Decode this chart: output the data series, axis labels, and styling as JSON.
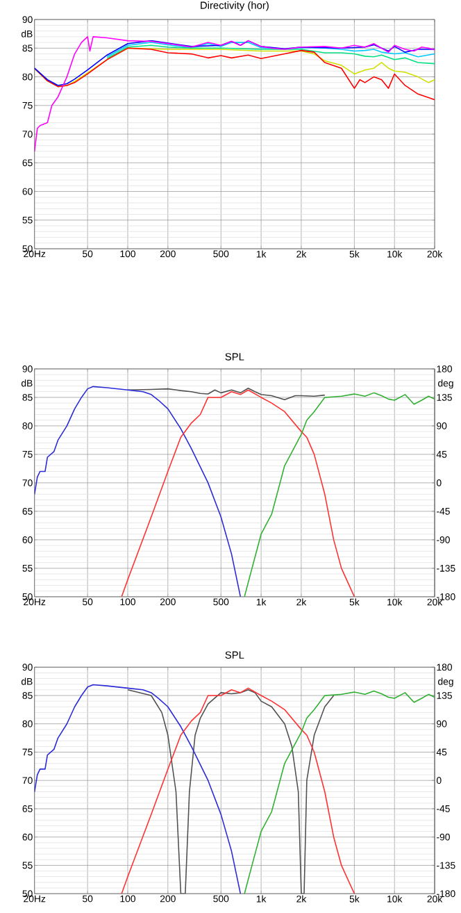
{
  "chart_data": [
    {
      "type": "line",
      "title": "Directivity (hor)",
      "ylabel": "dB",
      "log": "x",
      "grid": true,
      "xlim": [
        20,
        20000
      ],
      "ylim": [
        50,
        90
      ],
      "xticks": [
        {
          "value": 20,
          "label": "20Hz"
        },
        50,
        100,
        200,
        500,
        {
          "value": 1000,
          "label": "1k"
        },
        {
          "value": 2000,
          "label": "2k"
        },
        {
          "value": 5000,
          "label": "5k"
        },
        {
          "value": 10000,
          "label": "10k"
        },
        {
          "value": 20000,
          "label": "20k"
        }
      ],
      "yticks": [
        50,
        55,
        60,
        65,
        70,
        75,
        80,
        85,
        90
      ],
      "series": [
        {
          "color": "#00c8ff",
          "x": [
            70,
            100,
            150,
            200,
            300,
            400,
            500,
            600,
            800,
            1000,
            1500,
            2000,
            3000,
            4000,
            5000,
            6000,
            7000,
            8000,
            10000,
            12000,
            15000,
            20000
          ],
          "values": [
            83.5,
            85.5,
            86,
            85.6,
            85.1,
            85.8,
            85.3,
            86,
            86,
            85.1,
            84.8,
            85.1,
            85,
            84.8,
            84.5,
            84.6,
            84.8,
            84.3,
            84,
            84.2,
            83.5,
            84
          ]
        },
        {
          "color": "#00e080",
          "x": [
            70,
            100,
            150,
            200,
            300,
            500,
            1000,
            1500,
            2000,
            3000,
            4000,
            5000,
            6000,
            7000,
            8000,
            10000,
            12000,
            15000,
            20000
          ],
          "values": [
            83.2,
            85.2,
            85.5,
            85.2,
            85,
            85,
            84.8,
            84.8,
            84.8,
            84.2,
            84.2,
            84,
            83.6,
            83.5,
            83.8,
            83,
            83.3,
            82.5,
            82.3
          ]
        },
        {
          "color": "#d0e000",
          "x": [
            20,
            25,
            30,
            35,
            40,
            50,
            70,
            100,
            200,
            500,
            1000,
            2000,
            2500,
            3000,
            4000,
            5000,
            6000,
            7000,
            8000,
            9000,
            10000,
            12000,
            15000,
            18000,
            20000
          ],
          "values": [
            81.4,
            79.3,
            78.3,
            78.5,
            79.2,
            80.7,
            83,
            85,
            84.8,
            84.8,
            84.5,
            84.5,
            84,
            82.8,
            82,
            80.5,
            81.2,
            81.5,
            82.5,
            81.5,
            81,
            80.8,
            80,
            79,
            79.5
          ]
        },
        {
          "color": "#ff0000",
          "x": [
            20,
            25,
            30,
            35,
            40,
            50,
            70,
            100,
            150,
            200,
            300,
            400,
            500,
            600,
            800,
            1000,
            1500,
            2000,
            2500,
            3000,
            4000,
            5000,
            5500,
            6000,
            7000,
            8000,
            9000,
            10000,
            12000,
            15000,
            20000
          ],
          "values": [
            81.5,
            79.3,
            78.3,
            78.5,
            79,
            80.5,
            83,
            85,
            84.8,
            84.2,
            84,
            83.3,
            83.7,
            83.3,
            83.8,
            83.2,
            84,
            84.6,
            84.3,
            82.5,
            81.5,
            78,
            79.5,
            79,
            80,
            79.5,
            78,
            80.5,
            78.5,
            77,
            76
          ]
        },
        {
          "color": "#0000ff",
          "x": [
            20,
            25,
            30,
            35,
            40,
            50,
            70,
            100,
            150,
            200,
            300,
            400,
            500,
            600,
            700,
            800,
            1000,
            1500,
            2000,
            3000,
            4000,
            5000,
            6000,
            7000,
            8000,
            9000,
            10000,
            12000,
            15000,
            20000
          ],
          "values": [
            81.5,
            79.5,
            78.5,
            78.8,
            79.6,
            81.2,
            83.8,
            85.8,
            86.3,
            85.9,
            85.3,
            null,
            85.5,
            86.2,
            85.5,
            86.3,
            85.3,
            84.9,
            85.2,
            null,
            85,
            85.1,
            85.2,
            85.6,
            85,
            84.5,
            85.3,
            84.3,
            84.8,
            84.8
          ]
        },
        {
          "color": "#ff00ff",
          "x": [
            20,
            21,
            22,
            25,
            27,
            30,
            35,
            40,
            45,
            50,
            52,
            55,
            70,
            100,
            150,
            200,
            300,
            400,
            500,
            600,
            700,
            800,
            1000,
            1200,
            1500,
            2000,
            3000,
            4000,
            5000,
            6000,
            7000,
            8000,
            9000,
            10000,
            12000,
            14000,
            16000,
            18000,
            20000
          ],
          "values": [
            67,
            71,
            71.5,
            72,
            75,
            76.5,
            80,
            84,
            86,
            87,
            84.5,
            87,
            86.8,
            86.3,
            86.2,
            85.8,
            85.2,
            86,
            85.5,
            86.2,
            85.5,
            86.3,
            85.3,
            85,
            84.8,
            85.2,
            85.3,
            85,
            85.5,
            85.2,
            85.8,
            85,
            84.3,
            85.5,
            84.8,
            84.5,
            85.2,
            85,
            84.7
          ]
        }
      ]
    },
    {
      "type": "line",
      "title": "SPL",
      "ylabel": "dB",
      "y2label": "deg",
      "log": "x",
      "grid": true,
      "xlim": [
        20,
        20000
      ],
      "ylim": [
        50,
        90
      ],
      "y2lim": [
        -180,
        180
      ],
      "xticks": [
        {
          "value": 20,
          "label": "20Hz"
        },
        50,
        100,
        200,
        500,
        {
          "value": 1000,
          "label": "1k"
        },
        {
          "value": 2000,
          "label": "2k"
        },
        {
          "value": 5000,
          "label": "5k"
        },
        {
          "value": 10000,
          "label": "10k"
        },
        {
          "value": 20000,
          "label": "20k"
        }
      ],
      "yticks": [
        50,
        55,
        60,
        65,
        70,
        75,
        80,
        85,
        90
      ],
      "y2ticks": [
        -180,
        -135,
        -90,
        -45,
        0,
        45,
        90,
        135,
        180
      ],
      "series": [
        {
          "color": "#505050",
          "x": [
            100,
            150,
            200,
            250,
            300,
            350,
            400,
            450,
            500,
            600,
            700,
            800,
            900,
            1000,
            1200,
            1500,
            1800,
            2000,
            2500,
            3000
          ],
          "values": [
            86.3,
            86.4,
            86.5,
            86.2,
            86,
            85.7,
            85.6,
            86.3,
            85.8,
            86.3,
            85.8,
            86.6,
            86,
            85.5,
            85.3,
            84.6,
            85.3,
            85.3,
            85.2,
            85.4
          ]
        },
        {
          "color": "#2a2ad8",
          "x": [
            20,
            21,
            22,
            24,
            25,
            28,
            30,
            35,
            40,
            45,
            50,
            55,
            70,
            100,
            130,
            150,
            170,
            200,
            250,
            300,
            400,
            500,
            600,
            700
          ],
          "values": [
            68,
            71,
            72,
            72,
            74.5,
            75.5,
            77.5,
            80,
            83,
            85,
            86.5,
            86.9,
            86.7,
            86.3,
            86,
            85.5,
            84.5,
            83,
            79.5,
            76,
            70,
            64,
            57.5,
            50
          ]
        },
        {
          "color": "#ff3030",
          "x": [
            90,
            100,
            150,
            200,
            250,
            300,
            350,
            400,
            500,
            600,
            700,
            800,
            1000,
            1200,
            1500,
            2000,
            2200,
            2500,
            3000,
            3500,
            4000,
            5000
          ],
          "values": [
            50,
            53,
            64,
            72,
            78,
            80.5,
            82,
            85,
            85,
            86,
            85.5,
            86.3,
            85,
            84,
            82.5,
            79,
            78,
            75,
            68,
            60,
            55,
            50
          ]
        },
        {
          "color": "#30b030",
          "x": [
            750,
            900,
            1000,
            1200,
            1500,
            2000,
            2200,
            2500,
            3000,
            4000,
            5000,
            6000,
            7000,
            8000,
            9000,
            10000,
            12000,
            14000,
            16000,
            18000,
            20000
          ],
          "values": [
            50,
            57,
            61,
            64.5,
            73,
            78.5,
            81,
            82.5,
            85,
            85.2,
            85.6,
            85.2,
            85.8,
            85.3,
            84.7,
            84.5,
            85.5,
            83.8,
            84.5,
            85.2,
            84.7
          ]
        }
      ]
    },
    {
      "type": "line",
      "title": "SPL",
      "ylabel": "dB",
      "y2label": "deg",
      "log": "x",
      "grid": true,
      "xlim": [
        20,
        20000
      ],
      "ylim": [
        50,
        90
      ],
      "y2lim": [
        -180,
        180
      ],
      "xticks": [
        {
          "value": 20,
          "label": "20Hz"
        },
        50,
        100,
        200,
        500,
        {
          "value": 1000,
          "label": "1k"
        },
        {
          "value": 2000,
          "label": "2k"
        },
        {
          "value": 5000,
          "label": "5k"
        },
        {
          "value": 10000,
          "label": "10k"
        },
        {
          "value": 20000,
          "label": "20k"
        }
      ],
      "yticks": [
        50,
        55,
        60,
        65,
        70,
        75,
        80,
        85,
        90
      ],
      "y2ticks": [
        -180,
        -135,
        -90,
        -45,
        0,
        45,
        90,
        135,
        180
      ],
      "series": [
        {
          "color": "#505050",
          "x": [
            100,
            150,
            180,
            200,
            230,
            250,
            270,
            290,
            320,
            350,
            400,
            500,
            600,
            700,
            800,
            900,
            1000,
            1200,
            1500,
            1700,
            1900,
            2000,
            2100,
            2200,
            2500,
            3000,
            3500
          ],
          "values": [
            86,
            85,
            82,
            78,
            68,
            50,
            50,
            68,
            78,
            81,
            83.5,
            85.5,
            85.3,
            85.5,
            86,
            85.5,
            84,
            83,
            80,
            76,
            68,
            50,
            50,
            70,
            78,
            83,
            85
          ]
        },
        {
          "color": "#2a2ad8",
          "x": [
            20,
            21,
            22,
            24,
            25,
            28,
            30,
            35,
            40,
            45,
            50,
            55,
            70,
            100,
            130,
            150,
            170,
            200,
            250,
            300,
            400,
            500,
            600,
            700
          ],
          "values": [
            68,
            71,
            72,
            72,
            74.5,
            75.5,
            77.5,
            80,
            83,
            85,
            86.5,
            86.9,
            86.7,
            86.3,
            86,
            85.5,
            84.5,
            83,
            79.5,
            76,
            70,
            64,
            57.5,
            50
          ]
        },
        {
          "color": "#ff3030",
          "x": [
            90,
            100,
            150,
            200,
            250,
            300,
            350,
            400,
            500,
            600,
            700,
            800,
            1000,
            1200,
            1500,
            2000,
            2200,
            2500,
            3000,
            3500,
            4000,
            5000
          ],
          "values": [
            50,
            53,
            64,
            72,
            78,
            80.5,
            82,
            85,
            85,
            86,
            85.5,
            86.3,
            85,
            84,
            82.5,
            79,
            78,
            75,
            68,
            60,
            55,
            50
          ]
        },
        {
          "color": "#30b030",
          "x": [
            750,
            900,
            1000,
            1200,
            1500,
            2000,
            2200,
            2500,
            3000,
            4000,
            5000,
            6000,
            7000,
            8000,
            9000,
            10000,
            12000,
            14000,
            16000,
            18000,
            20000
          ],
          "values": [
            50,
            57,
            61,
            64.5,
            73,
            78.5,
            81,
            82.5,
            85,
            85.2,
            85.6,
            85.2,
            85.8,
            85.3,
            84.7,
            84.5,
            85.5,
            83.8,
            84.5,
            85.2,
            84.7
          ]
        }
      ]
    }
  ]
}
